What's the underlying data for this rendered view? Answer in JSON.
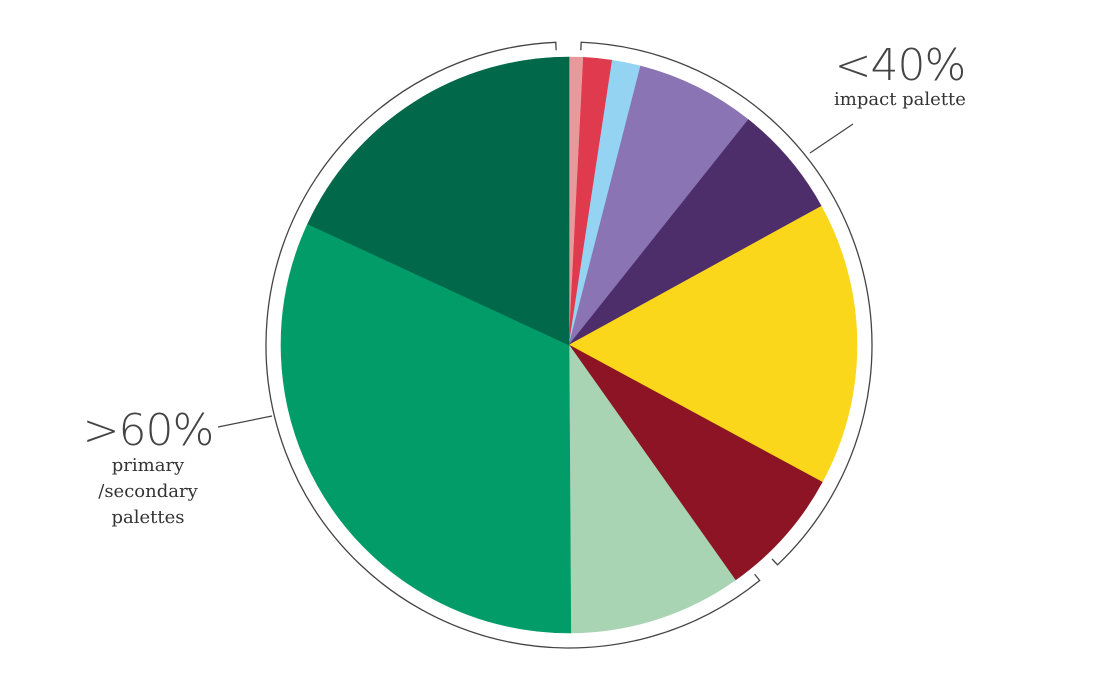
{
  "chart_data": {
    "type": "pie",
    "title": "",
    "start_angle_deg": 0,
    "direction": "clockwise",
    "slices": [
      {
        "value": 0.8,
        "color": "#E8999B"
      },
      {
        "value": 1.6,
        "color": "#E03A4E"
      },
      {
        "value": 1.6,
        "color": "#94D3F2"
      },
      {
        "value": 6.7,
        "color": "#8A74B3"
      },
      {
        "value": 6.3,
        "color": "#4E2D6B"
      },
      {
        "value": 15.9,
        "color": "#FBD71C"
      },
      {
        "value": 7.3,
        "color": "#8C1424"
      },
      {
        "value": 9.7,
        "color": "#A8D4B3"
      },
      {
        "value": 17.0,
        "color": "#029C69"
      },
      {
        "value": 15.0,
        "color": "#029C69"
      },
      {
        "value": 18.1,
        "color": "#01694A"
      }
    ],
    "groups": [
      {
        "big_label": "<40%",
        "small_label": [
          "impact palette"
        ]
      },
      {
        "big_label": ">60%",
        "small_label": [
          "primary",
          "/secondary",
          "palettes"
        ]
      }
    ]
  }
}
